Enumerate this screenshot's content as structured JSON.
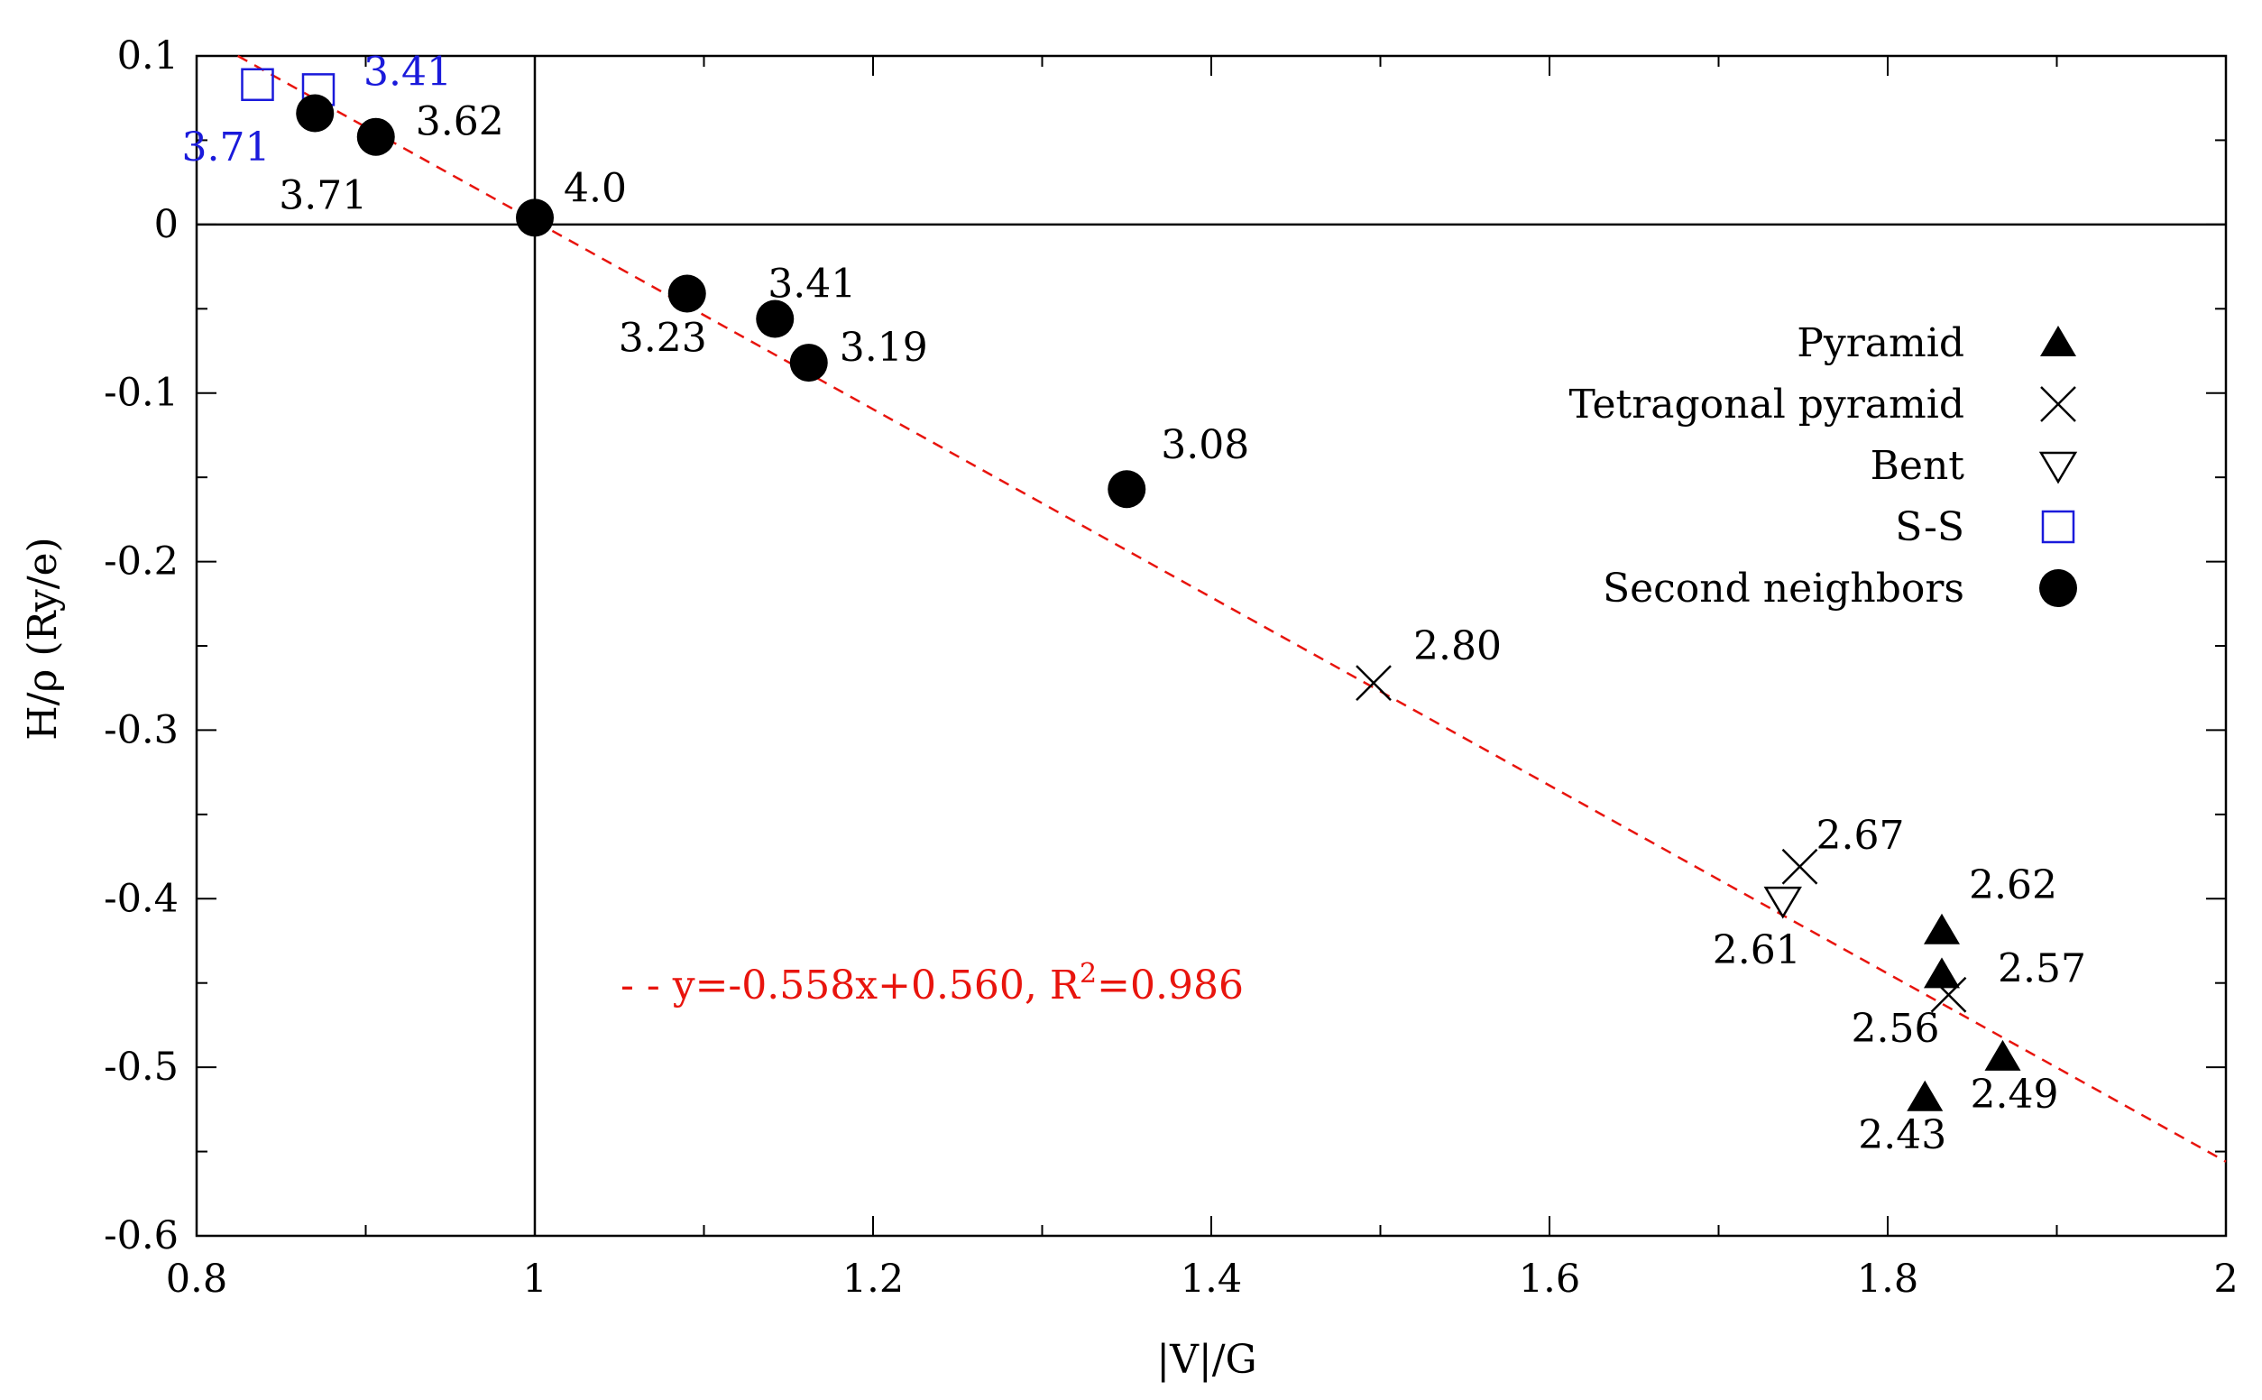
{
  "chart_data": {
    "type": "scatter",
    "title": "",
    "xlabel": "|V|/G",
    "ylabel": "H/ρ (Ry/e)",
    "xlim": [
      0.8,
      2.0
    ],
    "ylim": [
      -0.6,
      0.1
    ],
    "x_ticks": [
      0.8,
      1.0,
      1.2,
      1.4,
      1.6,
      1.8,
      2.0
    ],
    "x_tick_labels": [
      "0.8",
      "1",
      "1.2",
      "1.4",
      "1.6",
      "1.8",
      "2"
    ],
    "y_ticks": [
      0.1,
      0.0,
      -0.1,
      -0.2,
      -0.3,
      -0.4,
      -0.5,
      -0.6
    ],
    "y_tick_labels": [
      "0.1",
      "0",
      "-0.1",
      "-0.2",
      "-0.3",
      "-0.4",
      "-0.5",
      "-0.6"
    ],
    "reference_lines": {
      "x": 1.0,
      "y": 0.0
    },
    "series": [
      {
        "name": "Pyramid",
        "marker": "triangle-up-filled",
        "color": "#000000",
        "points": [
          {
            "x": 1.832,
            "y": -0.419,
            "label": "2.62"
          },
          {
            "x": 1.832,
            "y": -0.445,
            "label": "2.57"
          },
          {
            "x": 1.868,
            "y": -0.494,
            "label": "2.49"
          },
          {
            "x": 1.822,
            "y": -0.518,
            "label": "2.43"
          }
        ]
      },
      {
        "name": "Tetragonal pyramid",
        "marker": "x",
        "color": "#000000",
        "points": [
          {
            "x": 1.496,
            "y": -0.272,
            "label": "2.80"
          },
          {
            "x": 1.748,
            "y": -0.381,
            "label": "2.67"
          },
          {
            "x": 1.836,
            "y": -0.457,
            "label": "2.56"
          }
        ]
      },
      {
        "name": "Bent",
        "marker": "triangle-down-open",
        "color": "#000000",
        "points": [
          {
            "x": 1.738,
            "y": -0.401,
            "label": "2.61"
          }
        ]
      },
      {
        "name": "S-S",
        "marker": "square-open",
        "color": "#1a1adb",
        "points": [
          {
            "x": 0.836,
            "y": 0.083,
            "label": "3.71"
          },
          {
            "x": 0.872,
            "y": 0.08,
            "label": "3.41"
          }
        ]
      },
      {
        "name": "Second neighbors",
        "marker": "circle-filled",
        "color": "#000000",
        "points": [
          {
            "x": 0.87,
            "y": 0.066,
            "label": "3.71"
          },
          {
            "x": 0.906,
            "y": 0.052,
            "label": "3.62"
          },
          {
            "x": 1.0,
            "y": 0.004,
            "label": "4.0"
          },
          {
            "x": 1.09,
            "y": -0.041,
            "label": "3.23"
          },
          {
            "x": 1.142,
            "y": -0.056,
            "label": "3.41"
          },
          {
            "x": 1.162,
            "y": -0.082,
            "label": "3.19"
          },
          {
            "x": 1.35,
            "y": -0.157,
            "label": "3.08"
          }
        ]
      }
    ],
    "fit": {
      "slope": -0.558,
      "intercept": 0.56,
      "x_range": [
        0.8,
        2.0
      ],
      "color": "#e8140d",
      "style": "dashed",
      "label_prefix": "- - y=-0.558x+0.560, R",
      "label_sup": "2",
      "label_suffix": "=0.986"
    },
    "legend_position": "center-right"
  }
}
